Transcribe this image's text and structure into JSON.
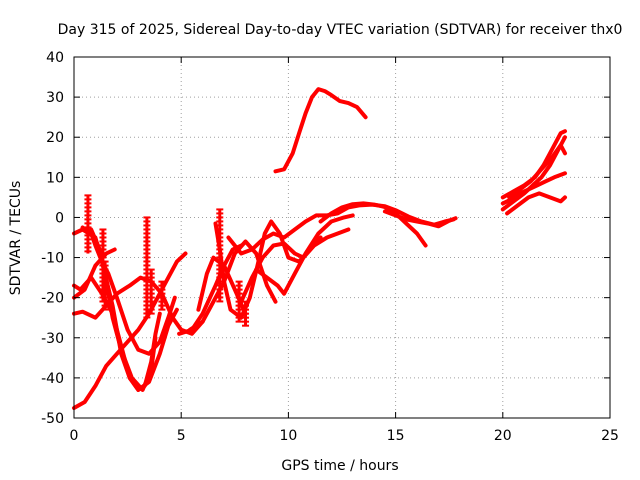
{
  "chart_data": {
    "type": "line",
    "title": "Day 315 of 2025, Sidereal Day-to-day VTEC variation (SDTVAR) for receiver thx0",
    "xlabel": "GPS time / hours",
    "ylabel": "SDTVAR / TECUs",
    "xlim": [
      0,
      25
    ],
    "ylim": [
      -50,
      40
    ],
    "xticks": [
      "0",
      "5",
      "10",
      "15",
      "20",
      "25"
    ],
    "yticks": [
      "-50",
      "-40",
      "-30",
      "-20",
      "-10",
      "0",
      "10",
      "20",
      "30",
      "40"
    ],
    "grid": true,
    "series_color": "#ff0000",
    "series": [
      {
        "name": "arc-01",
        "points": [
          [
            0.0,
            -47.5
          ],
          [
            0.5,
            -46
          ],
          [
            1.0,
            -42
          ],
          [
            1.5,
            -37
          ],
          [
            2.0,
            -34
          ],
          [
            2.5,
            -31
          ],
          [
            3.0,
            -28
          ],
          [
            3.5,
            -24
          ],
          [
            4.2,
            -17
          ],
          [
            4.8,
            -11
          ],
          [
            5.2,
            -9
          ]
        ]
      },
      {
        "name": "arc-02",
        "points": [
          [
            0.0,
            -17
          ],
          [
            0.3,
            -18
          ],
          [
            0.8,
            -15
          ],
          [
            1.3,
            -19
          ],
          [
            1.8,
            -24
          ],
          [
            2.2,
            -32
          ],
          [
            2.6,
            -40
          ],
          [
            3.0,
            -43
          ],
          [
            3.3,
            -42
          ],
          [
            3.6,
            -36
          ],
          [
            3.8,
            -29
          ],
          [
            4.0,
            -24
          ]
        ]
      },
      {
        "name": "arc-03",
        "points": [
          [
            0.0,
            -24
          ],
          [
            0.4,
            -23.5
          ],
          [
            1.0,
            -25
          ],
          [
            1.5,
            -22
          ],
          [
            2.0,
            -19
          ],
          [
            2.6,
            -17
          ],
          [
            3.1,
            -15
          ],
          [
            3.6,
            -16
          ],
          [
            4.1,
            -19
          ],
          [
            4.6,
            -25
          ],
          [
            5.0,
            -28
          ],
          [
            5.5,
            -29
          ],
          [
            6.0,
            -26
          ]
        ]
      },
      {
        "name": "arc-04",
        "points": [
          [
            0.0,
            -20
          ],
          [
            0.5,
            -18
          ],
          [
            1.0,
            -12
          ],
          [
            1.5,
            -9
          ],
          [
            1.9,
            -8
          ]
        ]
      },
      {
        "name": "arc-05",
        "points": [
          [
            0.0,
            -4
          ],
          [
            0.4,
            -3
          ],
          [
            1.0,
            -5
          ],
          [
            1.4,
            -13
          ],
          [
            1.8,
            -22
          ],
          [
            2.2,
            -34
          ],
          [
            2.6,
            -40
          ],
          [
            3.0,
            -43
          ],
          [
            3.5,
            -41
          ],
          [
            4.0,
            -34
          ],
          [
            4.4,
            -27
          ],
          [
            4.8,
            -23
          ]
        ]
      },
      {
        "name": "arc-06",
        "points": [
          [
            0.4,
            -2.5
          ],
          [
            0.8,
            -4
          ],
          [
            1.0,
            -7
          ],
          [
            1.3,
            -11
          ],
          [
            1.6,
            -14
          ],
          [
            2.0,
            -20
          ],
          [
            2.5,
            -28
          ],
          [
            3.0,
            -33
          ],
          [
            3.5,
            -34
          ],
          [
            4.0,
            -31
          ],
          [
            4.4,
            -25
          ],
          [
            4.7,
            -20
          ]
        ]
      },
      {
        "name": "arc-07",
        "points": [
          [
            0.8,
            -3
          ],
          [
            1.2,
            -8
          ],
          [
            1.5,
            -16
          ],
          [
            1.8,
            -25
          ],
          [
            2.2,
            -33
          ],
          [
            2.7,
            -40
          ],
          [
            3.2,
            -43
          ],
          [
            3.6,
            -38
          ],
          [
            3.8,
            -30
          ]
        ]
      },
      {
        "name": "arc-08",
        "points": [
          [
            4.9,
            -29
          ],
          [
            5.5,
            -28
          ],
          [
            6.0,
            -24
          ],
          [
            6.6,
            -17
          ],
          [
            7.0,
            -12
          ],
          [
            7.4,
            -8
          ],
          [
            7.8,
            -7
          ]
        ]
      },
      {
        "name": "arc-09",
        "points": [
          [
            5.4,
            -28
          ],
          [
            6.0,
            -26
          ],
          [
            6.5,
            -21
          ],
          [
            7.0,
            -16
          ],
          [
            7.5,
            -9
          ],
          [
            8.0,
            -6
          ],
          [
            8.5,
            -9
          ],
          [
            9.0,
            -17
          ],
          [
            9.4,
            -21
          ]
        ]
      },
      {
        "name": "arc-10",
        "points": [
          [
            6.6,
            -1.5
          ],
          [
            6.8,
            -8
          ],
          [
            7.0,
            -16
          ],
          [
            7.3,
            -23
          ],
          [
            7.8,
            -25
          ],
          [
            8.2,
            -20
          ],
          [
            8.6,
            -11
          ],
          [
            8.9,
            -4
          ],
          [
            9.2,
            -1
          ],
          [
            9.6,
            -4
          ],
          [
            10.0,
            -10
          ],
          [
            10.5,
            -11
          ],
          [
            11.0,
            -8
          ],
          [
            11.5,
            -5
          ]
        ]
      },
      {
        "name": "arc-11",
        "points": [
          [
            5.8,
            -23
          ],
          [
            6.2,
            -14
          ],
          [
            6.5,
            -10
          ],
          [
            7.0,
            -12
          ],
          [
            7.5,
            -18
          ],
          [
            8.0,
            -24
          ]
        ]
      },
      {
        "name": "arc-12",
        "points": [
          [
            7.8,
            -21
          ],
          [
            8.3,
            -15
          ],
          [
            8.8,
            -10
          ],
          [
            9.3,
            -7
          ],
          [
            9.8,
            -6.5
          ],
          [
            10.3,
            -9
          ],
          [
            10.7,
            -10
          ],
          [
            11.2,
            -7
          ],
          [
            11.8,
            -5
          ],
          [
            12.3,
            -4
          ],
          [
            12.8,
            -3
          ]
        ]
      },
      {
        "name": "arc-13",
        "points": [
          [
            8.5,
            -13
          ],
          [
            9.0,
            -15
          ],
          [
            9.5,
            -17
          ],
          [
            9.8,
            -19
          ],
          [
            10.3,
            -14
          ],
          [
            10.8,
            -9
          ],
          [
            11.4,
            -4
          ],
          [
            12.0,
            -1
          ],
          [
            12.6,
            0
          ],
          [
            13.0,
            0.5
          ]
        ]
      },
      {
        "name": "arc-14",
        "points": [
          [
            7.2,
            -5
          ],
          [
            7.8,
            -9
          ],
          [
            8.3,
            -8
          ],
          [
            8.8,
            -5.5
          ],
          [
            9.3,
            -4
          ],
          [
            9.8,
            -5
          ],
          [
            10.3,
            -3
          ],
          [
            10.8,
            -1
          ],
          [
            11.3,
            0.5
          ],
          [
            11.8,
            0.5
          ],
          [
            12.3,
            1
          ],
          [
            12.8,
            2.5
          ],
          [
            13.3,
            3
          ],
          [
            13.9,
            3.2
          ],
          [
            14.5,
            2.8
          ],
          [
            15.0,
            1.8
          ],
          [
            15.6,
            0.2
          ],
          [
            16.2,
            -1
          ],
          [
            16.8,
            -1.8
          ],
          [
            17.3,
            -1
          ],
          [
            17.7,
            -0.5
          ]
        ]
      },
      {
        "name": "arc-15",
        "points": [
          [
            11.5,
            -1
          ],
          [
            12.0,
            1
          ],
          [
            12.5,
            2.5
          ],
          [
            13.0,
            3.3
          ],
          [
            13.5,
            3.5
          ],
          [
            14.0,
            3.2
          ],
          [
            14.5,
            2.6
          ],
          [
            15.0,
            1
          ],
          [
            15.5,
            -1.5
          ],
          [
            16.0,
            -4
          ],
          [
            16.4,
            -7
          ]
        ]
      },
      {
        "name": "arc-16",
        "points": [
          [
            14.5,
            1.5
          ],
          [
            15.0,
            0.5
          ],
          [
            15.5,
            -0.5
          ],
          [
            16.0,
            -1
          ],
          [
            16.5,
            -1.5
          ],
          [
            17.0,
            -2.2
          ],
          [
            17.5,
            -0.8
          ],
          [
            17.8,
            -0.2
          ]
        ]
      },
      {
        "name": "arc-17",
        "points": [
          [
            9.4,
            11.5
          ],
          [
            9.8,
            12
          ],
          [
            10.2,
            16
          ],
          [
            10.5,
            21
          ],
          [
            10.8,
            26
          ],
          [
            11.1,
            30
          ],
          [
            11.4,
            32
          ],
          [
            11.7,
            31.5
          ],
          [
            12.0,
            30.5
          ],
          [
            12.4,
            29
          ],
          [
            12.8,
            28.5
          ],
          [
            13.2,
            27.5
          ],
          [
            13.6,
            25
          ]
        ]
      },
      {
        "name": "arc-18",
        "points": [
          [
            20.0,
            2
          ],
          [
            20.5,
            4
          ],
          [
            21.0,
            6
          ],
          [
            21.4,
            8
          ],
          [
            21.8,
            10
          ],
          [
            22.2,
            13
          ],
          [
            22.6,
            17
          ],
          [
            22.9,
            20
          ]
        ]
      },
      {
        "name": "arc-19",
        "points": [
          [
            20.0,
            3.5
          ],
          [
            20.4,
            4.5
          ],
          [
            20.8,
            6
          ],
          [
            21.2,
            7
          ],
          [
            21.6,
            8
          ],
          [
            22.0,
            9
          ],
          [
            22.4,
            10
          ],
          [
            22.9,
            11
          ]
        ]
      },
      {
        "name": "arc-20",
        "points": [
          [
            20.0,
            5
          ],
          [
            20.5,
            6.5
          ],
          [
            21.0,
            8
          ],
          [
            21.5,
            10
          ],
          [
            21.9,
            13
          ],
          [
            22.3,
            17
          ],
          [
            22.7,
            21
          ],
          [
            22.9,
            21.5
          ]
        ]
      },
      {
        "name": "arc-21",
        "points": [
          [
            20.2,
            1
          ],
          [
            20.7,
            3
          ],
          [
            21.2,
            5
          ],
          [
            21.7,
            6
          ],
          [
            22.2,
            5
          ],
          [
            22.7,
            4
          ],
          [
            22.9,
            5
          ]
        ]
      },
      {
        "name": "arc-22",
        "points": [
          [
            20.3,
            5
          ],
          [
            20.8,
            7
          ],
          [
            21.3,
            9
          ],
          [
            21.8,
            12
          ],
          [
            22.3,
            15
          ],
          [
            22.7,
            18
          ],
          [
            22.9,
            16
          ]
        ]
      }
    ],
    "spikes": [
      {
        "name": "spike-01",
        "x": 0.65,
        "y": [
          -9,
          5.5
        ]
      },
      {
        "name": "spike-02",
        "x": 1.35,
        "y": [
          -21,
          -3
        ]
      },
      {
        "name": "spike-03",
        "x": 1.45,
        "y": [
          -23,
          -11
        ]
      },
      {
        "name": "spike-04",
        "x": 3.4,
        "y": [
          -25,
          0
        ]
      },
      {
        "name": "spike-05",
        "x": 3.6,
        "y": [
          -24,
          -13
        ]
      },
      {
        "name": "spike-06",
        "x": 4.1,
        "y": [
          -23,
          -16
        ]
      },
      {
        "name": "spike-07",
        "x": 6.8,
        "y": [
          -21,
          2
        ]
      },
      {
        "name": "spike-08",
        "x": 7.7,
        "y": [
          -26,
          -16
        ]
      },
      {
        "name": "spike-09",
        "x": 8.0,
        "y": [
          -27,
          -21
        ]
      }
    ]
  }
}
